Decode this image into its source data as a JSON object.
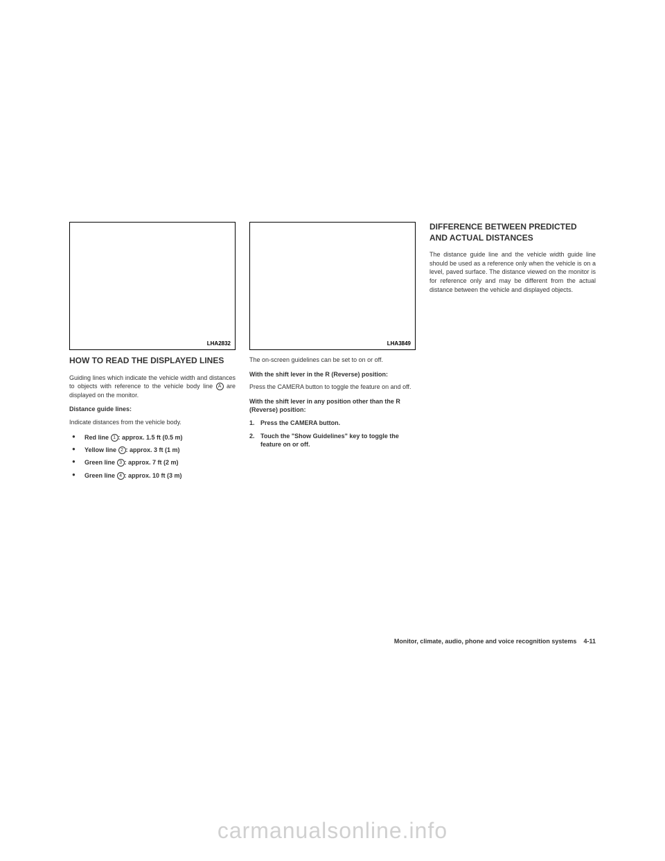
{
  "col1": {
    "imageLabel": "LHA2832",
    "heading": "HOW TO READ THE DISPLAYED LINES",
    "para1_pre": "Guiding lines which indicate the vehicle width and distances to objects with reference to the vehicle body line ",
    "para1_circle": "A",
    "para1_post": " are displayed on the monitor.",
    "subheading": "Distance guide lines:",
    "para2": "Indicate distances from the vehicle body.",
    "bullets": [
      {
        "label": "Red line",
        "num": "1",
        "dist": ": approx. 1.5 ft (0.5 m)"
      },
      {
        "label": "Yellow line",
        "num": "2",
        "dist": ": approx. 3 ft (1 m)"
      },
      {
        "label": "Green line",
        "num": "3",
        "dist": ": approx. 7 ft (2 m)"
      },
      {
        "label": "Green line",
        "num": "4",
        "dist": ": approx. 10 ft (3 m)"
      }
    ]
  },
  "col2": {
    "imageLabel": "LHA3849",
    "para1": "The on-screen guidelines can be set to on or off.",
    "para2": "With the shift lever in the R (Reverse) position:",
    "para3": "Press the CAMERA button to toggle the feature on and off.",
    "para4": "With the shift lever in any position other than the R (Reverse) position:",
    "steps": [
      {
        "num": "1.",
        "text": "Press the CAMERA button."
      },
      {
        "num": "2.",
        "text": "Touch the \"Show Guidelines\" key to toggle the feature on or off."
      }
    ]
  },
  "col3": {
    "heading": "DIFFERENCE BETWEEN PREDICTED AND ACTUAL DISTANCES",
    "para1": "The distance guide line and the vehicle width guide line should be used as a reference only when the vehicle is on a level, paved surface. The distance viewed on the monitor is for reference only and may be different from the actual distance between the vehicle and displayed objects."
  },
  "footer": {
    "text": "Monitor, climate, audio, phone and voice recognition systems",
    "pageNum": "4-11"
  },
  "watermark": "carmanualsonline.info"
}
